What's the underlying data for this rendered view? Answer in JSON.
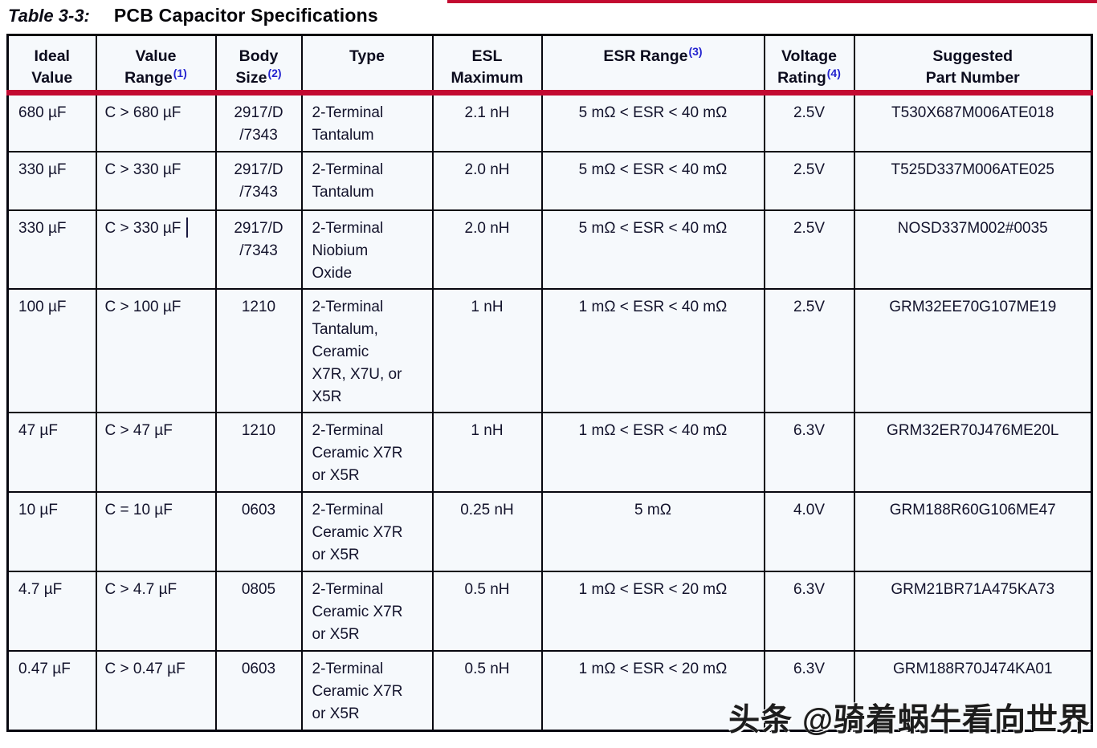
{
  "page": {
    "caption_label": "Table 3-3:",
    "caption_text": "PCB Capacitor Specifications",
    "watermark": "头条 @骑着蜗牛看向世界"
  },
  "colors": {
    "header_underline": "#c30a31",
    "footnote_blue": "#2323cf",
    "cell_background": "#f6f9fc",
    "grid_line": "#07070f",
    "text_ink": "#13132c"
  },
  "table": {
    "columns": [
      {
        "id": "ideal-value",
        "lines": [
          "Ideal",
          "Value"
        ],
        "sup": ""
      },
      {
        "id": "value-range",
        "lines": [
          "Value",
          "Range"
        ],
        "sup": "(1)"
      },
      {
        "id": "body-size",
        "lines": [
          "Body",
          "Size"
        ],
        "sup": "(2)"
      },
      {
        "id": "type",
        "lines": [
          "Type"
        ],
        "sup": ""
      },
      {
        "id": "esl-maximum",
        "lines": [
          "ESL",
          "Maximum"
        ],
        "sup": ""
      },
      {
        "id": "esr-range",
        "lines": [
          "ESR Range"
        ],
        "sup": "(3)"
      },
      {
        "id": "voltage-rating",
        "lines": [
          "Voltage",
          "Rating"
        ],
        "sup": "(4)"
      },
      {
        "id": "suggested-part-number",
        "lines": [
          "Suggested",
          "Part Number"
        ],
        "sup": ""
      }
    ],
    "rows": [
      [
        "680 µF",
        "C > 680 µF",
        "2917/D\n/7343",
        "2-Terminal\nTantalum",
        "2.1 nH",
        "5 mΩ < ESR < 40 mΩ",
        "2.5V",
        "T530X687M006ATE018"
      ],
      [
        "330 µF",
        "C > 330 µF",
        "2917/D\n/7343",
        "2-Terminal\nTantalum",
        "2.0 nH",
        "5 mΩ < ESR < 40 mΩ",
        "2.5V",
        "T525D337M006ATE025"
      ],
      [
        "330 µF",
        "C > 330 µF",
        "2917/D\n/7343",
        "2-Terminal\nNiobium\nOxide",
        "2.0 nH",
        "5 mΩ < ESR < 40 mΩ",
        "2.5V",
        "NOSD337M002#0035"
      ],
      [
        "100 µF",
        "C > 100 µF",
        "1210",
        "2-Terminal\nTantalum,\nCeramic\nX7R, X7U, or\nX5R",
        "1 nH",
        "1 mΩ < ESR < 40 mΩ",
        "2.5V",
        "GRM32EE70G107ME19"
      ],
      [
        "47 µF",
        "C > 47 µF",
        "1210",
        "2-Terminal\nCeramic X7R\nor X5R",
        "1 nH",
        "1 mΩ < ESR < 40 mΩ",
        "6.3V",
        "GRM32ER70J476ME20L"
      ],
      [
        "10 µF",
        "C = 10 µF",
        "0603",
        "2-Terminal\nCeramic X7R\nor X5R",
        "0.25 nH",
        "5 mΩ",
        "4.0V",
        "GRM188R60G106ME47"
      ],
      [
        "4.7 µF",
        "C > 4.7 µF",
        "0805",
        "2-Terminal\nCeramic X7R\nor X5R",
        "0.5 nH",
        "1 mΩ < ESR < 20 mΩ",
        "6.3V",
        "GRM21BR71A475KA73"
      ],
      [
        "0.47 µF",
        "C > 0.47 µF",
        "0603",
        "2-Terminal\nCeramic X7R\nor X5R",
        "0.5 nH",
        "1 mΩ < ESR < 20 mΩ",
        "6.3V",
        "GRM188R70J474KA01"
      ]
    ]
  },
  "artifacts": {
    "text_caret": {
      "row": 2,
      "col": 1
    }
  }
}
